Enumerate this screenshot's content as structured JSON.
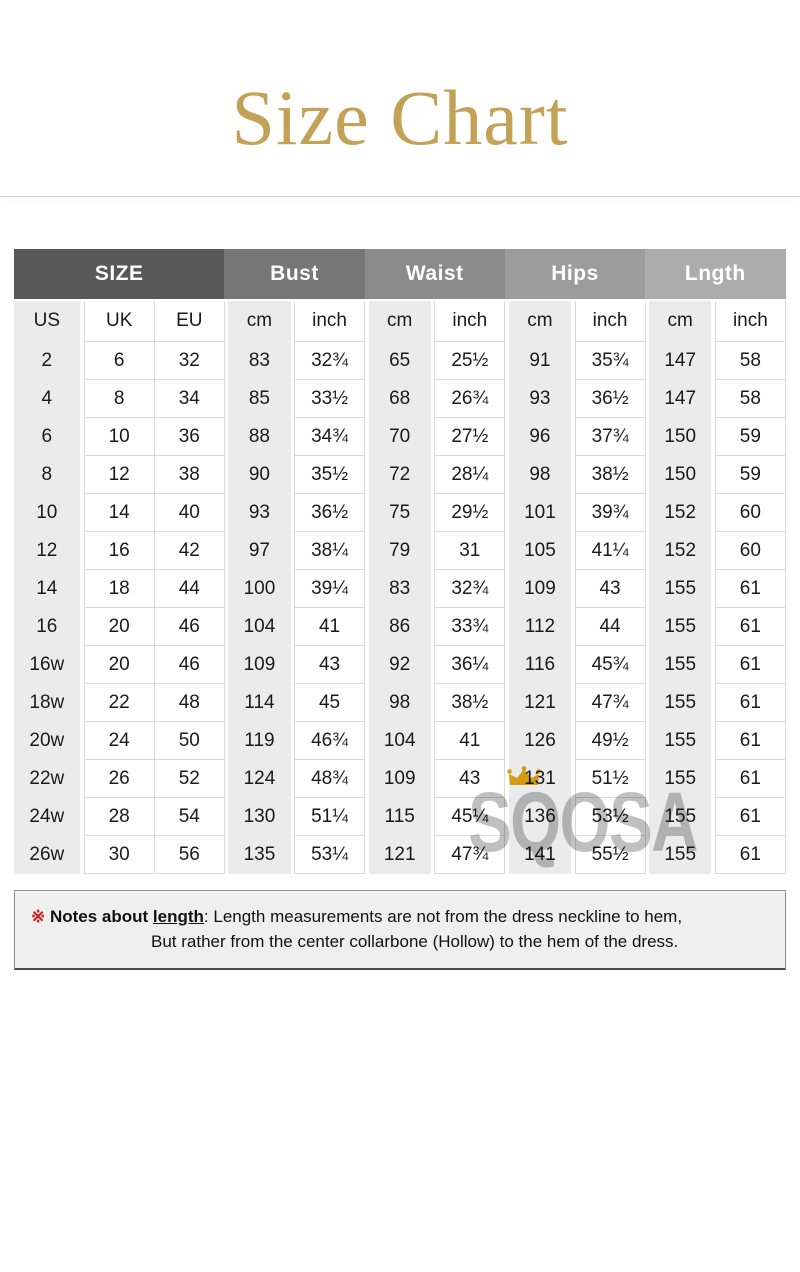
{
  "title": "Size Chart",
  "watermark": {
    "brand": "SQOSA",
    "crown_color": "#E5A912",
    "text_color": "#c0c0c0"
  },
  "table": {
    "groups": [
      {
        "label": "SIZE",
        "span": 3,
        "bg": "#585858"
      },
      {
        "label": "Bust",
        "span": 2,
        "bg": "#767676"
      },
      {
        "label": "Waist",
        "span": 2,
        "bg": "#8b8b8b"
      },
      {
        "label": "Hips",
        "span": 2,
        "bg": "#9c9c9c"
      },
      {
        "label": "Lngth",
        "span": 2,
        "bg": "#acacac"
      }
    ],
    "subheaders": [
      "US",
      "UK",
      "EU",
      "cm",
      "inch",
      "cm",
      "inch",
      "cm",
      "inch",
      "cm",
      "inch"
    ],
    "rows": [
      [
        "2",
        "6",
        "32",
        "83",
        "32¾",
        "65",
        "25½",
        "91",
        "35¾",
        "147",
        "58"
      ],
      [
        "4",
        "8",
        "34",
        "85",
        "33½",
        "68",
        "26¾",
        "93",
        "36½",
        "147",
        "58"
      ],
      [
        "6",
        "10",
        "36",
        "88",
        "34¾",
        "70",
        "27½",
        "96",
        "37¾",
        "150",
        "59"
      ],
      [
        "8",
        "12",
        "38",
        "90",
        "35½",
        "72",
        "28¼",
        "98",
        "38½",
        "150",
        "59"
      ],
      [
        "10",
        "14",
        "40",
        "93",
        "36½",
        "75",
        "29½",
        "101",
        "39¾",
        "152",
        "60"
      ],
      [
        "12",
        "16",
        "42",
        "97",
        "38¼",
        "79",
        "31",
        "105",
        "41¼",
        "152",
        "60"
      ],
      [
        "14",
        "18",
        "44",
        "100",
        "39¼",
        "83",
        "32¾",
        "109",
        "43",
        "155",
        "61"
      ],
      [
        "16",
        "20",
        "46",
        "104",
        "41",
        "86",
        "33¾",
        "112",
        "44",
        "155",
        "61"
      ],
      [
        "16w",
        "20",
        "46",
        "109",
        "43",
        "92",
        "36¼",
        "116",
        "45¾",
        "155",
        "61"
      ],
      [
        "18w",
        "22",
        "48",
        "114",
        "45",
        "98",
        "38½",
        "121",
        "47¾",
        "155",
        "61"
      ],
      [
        "20w",
        "24",
        "50",
        "119",
        "46¾",
        "104",
        "41",
        "126",
        "49½",
        "155",
        "61"
      ],
      [
        "22w",
        "26",
        "52",
        "124",
        "48¾",
        "109",
        "43",
        "131",
        "51½",
        "155",
        "61"
      ],
      [
        "24w",
        "28",
        "54",
        "130",
        "51¼",
        "115",
        "45¼",
        "136",
        "53½",
        "155",
        "61"
      ],
      [
        "26w",
        "30",
        "56",
        "135",
        "53¼",
        "121",
        "47¾",
        "141",
        "55½",
        "155",
        "61"
      ]
    ]
  },
  "notes": {
    "marker": "※",
    "bold": " Notes about ",
    "underlined": "length",
    "rest": ": Length measurements are not from the dress neckline to hem,",
    "line2": "But rather from the center collarbone (Hollow) to the hem of the dress."
  },
  "colors": {
    "title": "#c3a258",
    "note_marker": "#c52222",
    "gray_cell": "#ebebeb",
    "cell_border": "#dadada",
    "notes_bg": "#efefef"
  }
}
